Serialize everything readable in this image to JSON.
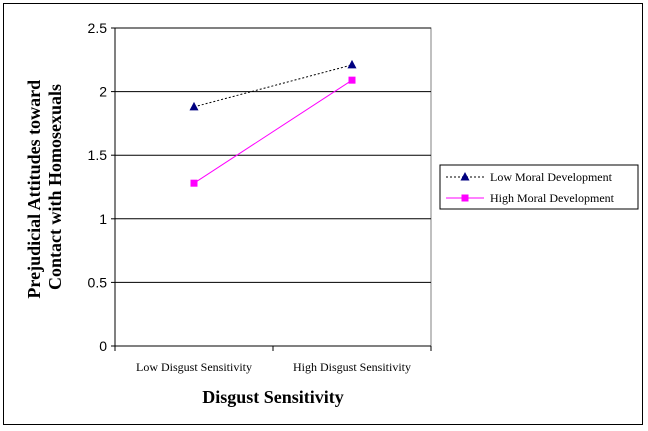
{
  "chart_data": {
    "type": "line",
    "title": "",
    "categories": [
      "Low Disgust Sensitivity",
      "High Disgust Sensitivity"
    ],
    "series": [
      {
        "name": "Low Moral Development",
        "values": [
          1.88,
          2.21
        ],
        "color": "#000080",
        "marker": "triangle",
        "dash": "dotted"
      },
      {
        "name": "High Moral Development",
        "values": [
          1.28,
          2.09
        ],
        "color": "#FF00FF",
        "marker": "square",
        "dash": "solid"
      }
    ],
    "xlabel": "Disgust Sensitivity",
    "ylabel": [
      "Prejudicial Attitudes toward",
      "Contact with Homosexuals"
    ],
    "ylim": [
      0,
      2.5
    ],
    "yticks": [
      "0",
      "0.5",
      "1",
      "1.5",
      "2",
      "2.5"
    ],
    "grid": true,
    "legend": "right"
  }
}
